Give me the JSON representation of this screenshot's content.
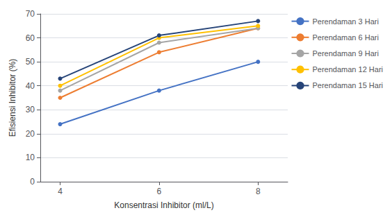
{
  "chart_data": {
    "type": "line",
    "x": [
      4,
      6,
      8
    ],
    "series": [
      {
        "name": "Perendaman 3 Hari",
        "color": "#4472C4",
        "marker": "circle",
        "values": [
          24,
          38,
          50
        ]
      },
      {
        "name": "Perendaman 6 Hari",
        "color": "#ED7D31",
        "marker": "circle",
        "values": [
          35,
          54,
          64
        ]
      },
      {
        "name": "Perendaman 9 Hari",
        "color": "#A5A5A5",
        "marker": "circle",
        "values": [
          38,
          58,
          64
        ]
      },
      {
        "name": "Perendaman 12 Hari",
        "color": "#FFC000",
        "marker": "circle",
        "values": [
          40,
          60,
          65
        ]
      },
      {
        "name": "Perendaman 15 Hari",
        "color": "#264478",
        "marker": "circle",
        "values": [
          43,
          61,
          67
        ]
      }
    ],
    "xlabel": "Konsentrasi Inhibitor (ml/L)",
    "ylabel": "Efisiensi Inhibitor (%)",
    "xlim": [
      3.6,
      8.6
    ],
    "ylim": [
      0,
      70
    ],
    "xticks": [
      4,
      6,
      8
    ],
    "yticks": [
      0,
      10,
      20,
      30,
      40,
      50,
      60,
      70
    ],
    "grid": true,
    "legend": "right"
  }
}
